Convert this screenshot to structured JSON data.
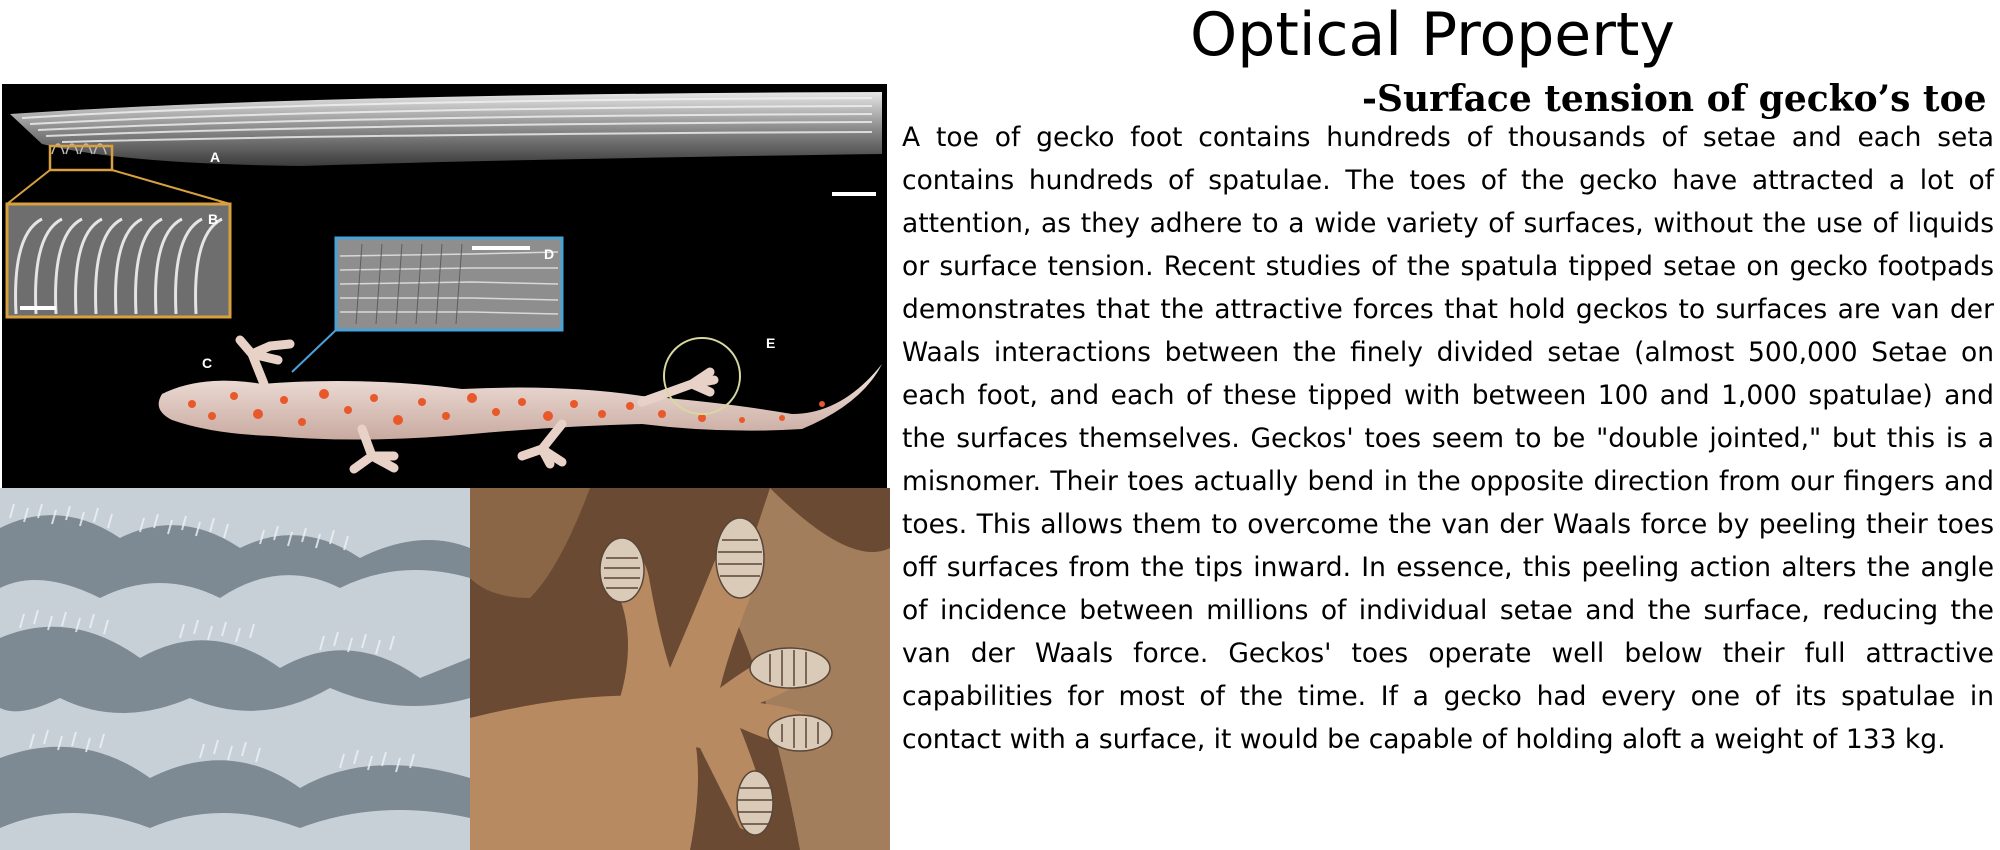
{
  "slide": {
    "title": "Optical Property",
    "subtitle": "-Surface tension of gecko’s toe",
    "body": "A toe of gecko foot contains hundreds of thousands of setae and each seta contains hundreds of spatulae. The toes of the gecko have attracted a lot of attention, as they adhere to a wide variety of surfaces, without the use of liquids or surface tension. Recent studies of the spatula tipped setae on gecko footpads demonstrates that the attractive forces that hold geckos to surfaces are van der Waals interactions between the finely divided setae (almost 500,000 Setae on each foot, and each of these tipped with between 100 and 1,000 spatulae) and the surfaces themselves. Geckos' toes seem to be \"double jointed,\" but this is a misnomer. Their toes actually bend in the opposite direction from our fingers and toes. This allows them to overcome the van der Waals force by peeling their toes off surfaces from the tips inward. In essence, this peeling action alters the angle of incidence between millions of individual setae and the surface, reducing the van der Waals force. Geckos' toes operate well below their full attractive capabilities for most of the time. If a gecko had every one of its spatulae in contact with a surface, it would be capable of holding aloft a weight of 133 kg."
  },
  "figure": {
    "labels": {
      "a": "A",
      "b": "B",
      "c": "C",
      "d": "D",
      "e": "E"
    },
    "colors": {
      "background": "#000000",
      "inset_b_frame": "#d9a040",
      "inset_d_frame": "#4aa3d8",
      "circle_e": "#d8d8a0",
      "gecko_skin": "#e8d2c8",
      "gecko_spots": "#e8582a"
    }
  },
  "photos": {
    "sem_colors": {
      "base": "#c7d0d6",
      "shadow": "#7d8a93",
      "highlight": "#eef2f5"
    },
    "foot_colors": {
      "bg": "#6a4a32",
      "skin": "#b88a62",
      "lamellae": "#d9cbb8",
      "ridges": "#5a4638"
    }
  }
}
